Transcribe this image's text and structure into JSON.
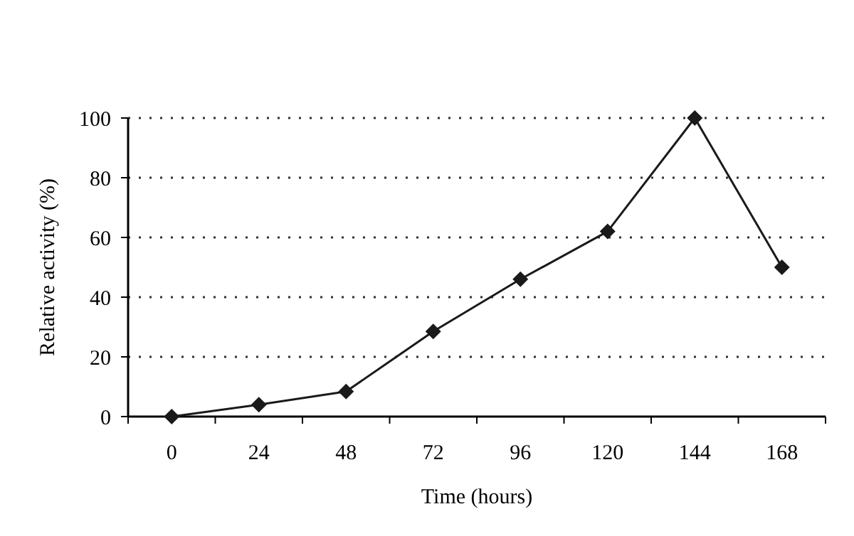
{
  "chart_data": {
    "type": "line",
    "xlabel": "Time (hours)",
    "ylabel": "Relative activity (%)",
    "categories": [
      "0",
      "24",
      "48",
      "72",
      "96",
      "120",
      "144",
      "168"
    ],
    "series": [
      {
        "color": "#1a1a1a",
        "values": [
          0,
          4,
          8.4,
          28.5,
          46,
          62,
          100,
          50
        ]
      }
    ],
    "ylim": [
      0,
      100
    ],
    "yticks": [
      0,
      20,
      40,
      60,
      80,
      100
    ],
    "grid": "y",
    "marker": "diamond",
    "line_style": "solid"
  }
}
